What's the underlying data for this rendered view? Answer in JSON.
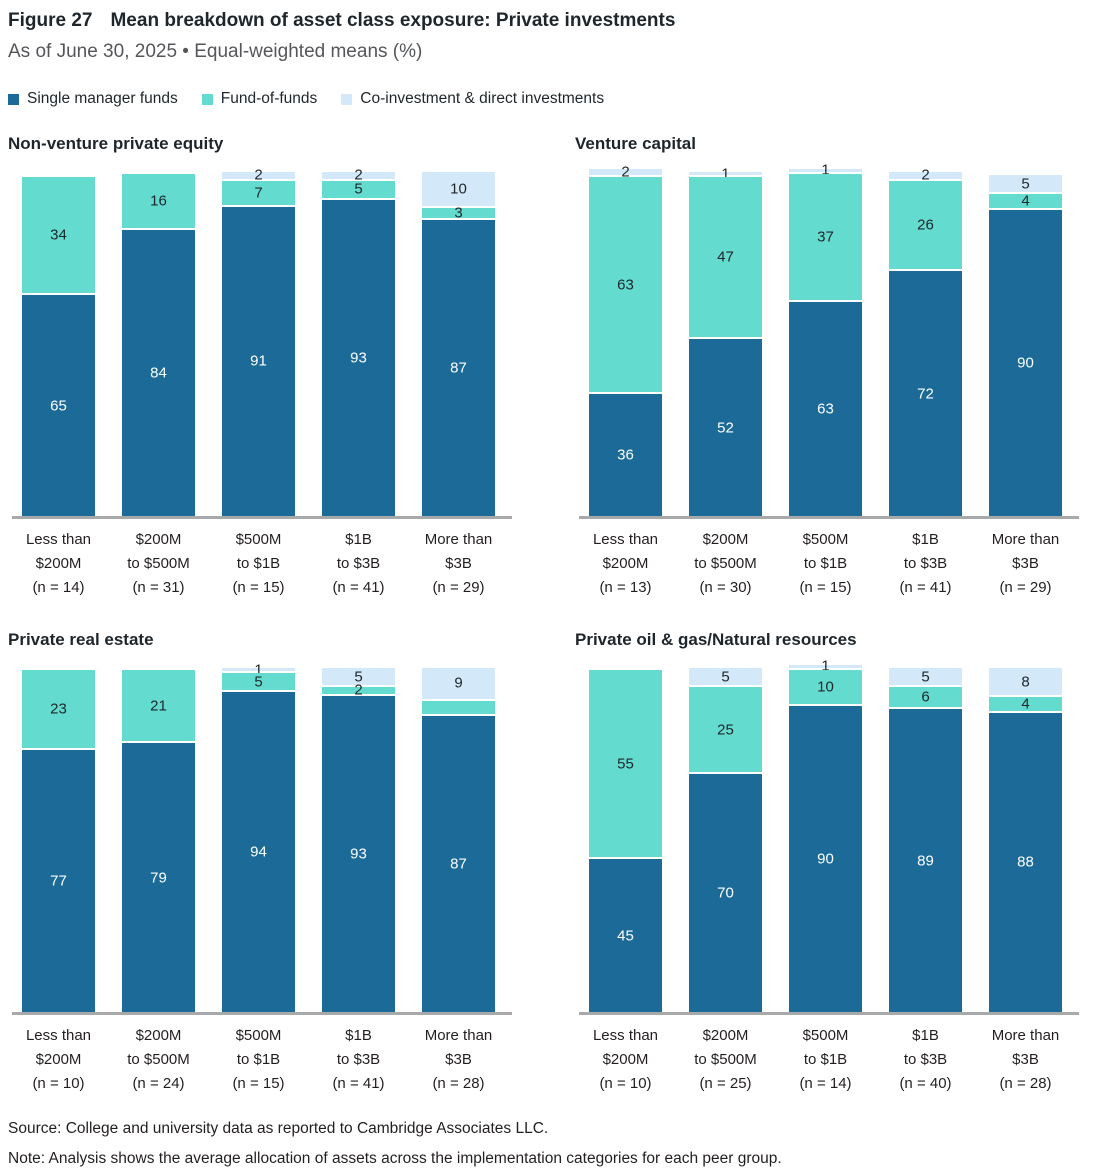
{
  "figure": {
    "label": "Figure 27",
    "title": "Mean breakdown of asset class exposure: Private investments",
    "subtitle": "As of June 30, 2025 • Equal-weighted means (%)"
  },
  "legend": [
    {
      "name": "Single manager funds",
      "color": "#1B6A97"
    },
    {
      "name": "Fund-of-funds",
      "color": "#64DBCF"
    },
    {
      "name": "Co-investment & direct investments",
      "color": "#D3E8F8"
    }
  ],
  "value_label_colors": {
    "on_dark": "#FFFFFF",
    "on_light": "#1F262B"
  },
  "axis_color": "#A7A9AB",
  "footer": {
    "source": "Source: College and university data as reported to Cambridge Associates LLC.",
    "note": "Note: Analysis shows the average allocation of assets across the implementation categories for each peer group."
  },
  "chart_data": [
    {
      "type": "bar",
      "stacked": true,
      "title": "Non-venture private equity",
      "ylabel": "Equal-weighted mean (%)",
      "ylim": [
        0,
        100
      ],
      "categories": [
        [
          "Less than",
          "$200M",
          "(n = 14)"
        ],
        [
          "$200M",
          "to $500M",
          "(n = 31)"
        ],
        [
          "$500M",
          "to $1B",
          "(n = 15)"
        ],
        [
          "$1B",
          "to $3B",
          "(n = 41)"
        ],
        [
          "More than",
          "$3B",
          "(n = 29)"
        ]
      ],
      "series": [
        {
          "name": "Single manager funds",
          "values": [
            65,
            84,
            91,
            93,
            87
          ],
          "labels": [
            "65",
            "84",
            "91",
            "93",
            "87"
          ]
        },
        {
          "name": "Fund-of-funds",
          "values": [
            34,
            16,
            7,
            5,
            3
          ],
          "labels": [
            "34",
            "16",
            "7",
            "5",
            "3"
          ]
        },
        {
          "name": "Co-investment & direct investments",
          "values": [
            0,
            0,
            2,
            2,
            10
          ],
          "labels": [
            "",
            "",
            "2",
            "2",
            "10"
          ]
        }
      ]
    },
    {
      "type": "bar",
      "stacked": true,
      "title": "Venture capital",
      "ylabel": "Equal-weighted mean (%)",
      "ylim": [
        0,
        100
      ],
      "categories": [
        [
          "Less than",
          "$200M",
          "(n = 13)"
        ],
        [
          "$200M",
          "to $500M",
          "(n = 30)"
        ],
        [
          "$500M",
          "to $1B",
          "(n = 15)"
        ],
        [
          "$1B",
          "to $3B",
          "(n = 41)"
        ],
        [
          "More than",
          "$3B",
          "(n = 29)"
        ]
      ],
      "series": [
        {
          "name": "Single manager funds",
          "values": [
            36,
            52,
            63,
            72,
            90
          ],
          "labels": [
            "36",
            "52",
            "63",
            "72",
            "90"
          ]
        },
        {
          "name": "Fund-of-funds",
          "values": [
            63,
            47,
            37,
            26,
            4
          ],
          "labels": [
            "63",
            "47",
            "37",
            "26",
            "4"
          ]
        },
        {
          "name": "Co-investment & direct investments",
          "values": [
            2,
            1,
            1,
            2,
            5
          ],
          "labels": [
            "2",
            "1",
            "1",
            "2",
            "5"
          ]
        }
      ]
    },
    {
      "type": "bar",
      "stacked": true,
      "title": "Private real estate",
      "ylabel": "Equal-weighted mean (%)",
      "ylim": [
        0,
        100
      ],
      "categories": [
        [
          "Less than",
          "$200M",
          "(n = 10)"
        ],
        [
          "$200M",
          "to $500M",
          "(n = 24)"
        ],
        [
          "$500M",
          "to $1B",
          "(n = 15)"
        ],
        [
          "$1B",
          "to $3B",
          "(n = 41)"
        ],
        [
          "More than",
          "$3B",
          "(n = 28)"
        ]
      ],
      "series": [
        {
          "name": "Single manager funds",
          "values": [
            77,
            79,
            94,
            93,
            87
          ],
          "labels": [
            "77",
            "79",
            "94",
            "93",
            "87"
          ]
        },
        {
          "name": "Fund-of-funds",
          "values": [
            23,
            21,
            5,
            2,
            4
          ],
          "labels": [
            "23",
            "21",
            "5",
            "2",
            ""
          ]
        },
        {
          "name": "Co-investment & direct investments",
          "values": [
            0,
            0,
            1,
            5,
            9
          ],
          "labels": [
            "",
            "",
            "1",
            "5",
            "9"
          ]
        }
      ]
    },
    {
      "type": "bar",
      "stacked": true,
      "title": "Private oil & gas/Natural resources",
      "ylabel": "Equal-weighted mean (%)",
      "ylim": [
        0,
        100
      ],
      "categories": [
        [
          "Less than",
          "$200M",
          "(n = 10)"
        ],
        [
          "$200M",
          "to $500M",
          "(n = 25)"
        ],
        [
          "$500M",
          "to $1B",
          "(n = 14)"
        ],
        [
          "$1B",
          "to $3B",
          "(n = 40)"
        ],
        [
          "More than",
          "$3B",
          "(n = 28)"
        ]
      ],
      "series": [
        {
          "name": "Single manager funds",
          "values": [
            45,
            70,
            90,
            89,
            88
          ],
          "labels": [
            "45",
            "70",
            "90",
            "89",
            "88"
          ]
        },
        {
          "name": "Fund-of-funds",
          "values": [
            55,
            25,
            10,
            6,
            4
          ],
          "labels": [
            "55",
            "25",
            "10",
            "6",
            "4"
          ]
        },
        {
          "name": "Co-investment & direct investments",
          "values": [
            0,
            5,
            1,
            5,
            8
          ],
          "labels": [
            "",
            "5",
            "1",
            "5",
            "8"
          ]
        }
      ]
    }
  ]
}
